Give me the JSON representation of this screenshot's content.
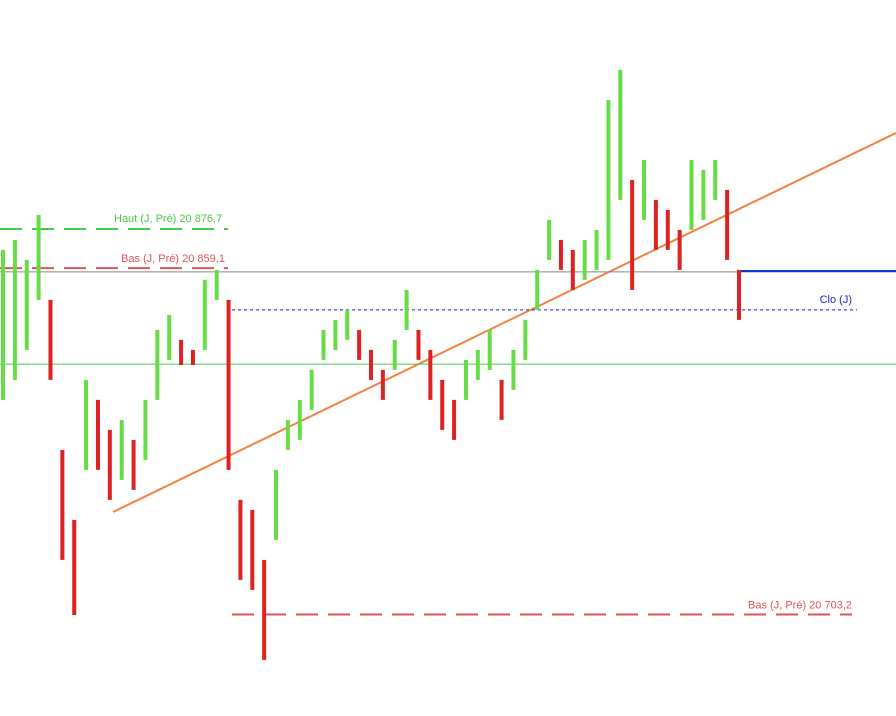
{
  "chart_data": {
    "type": "range",
    "ylim": [
      20657.55,
      20979.75
    ],
    "series": [
      {
        "colors": [
          "#66dd44",
          "#dd2222"
        ],
        "high": [
          20867.3,
          20871.8,
          20862.8,
          20883.0,
          20844.8,
          20777.3,
          20745.8,
          20808.8,
          20799.8,
          20786.3,
          20790.8,
          20781.8,
          20799.8,
          20831.3,
          20838.0,
          20826.8,
          20822.3,
          20853.8,
          20858.3,
          20844.8,
          20754.8,
          20750.3,
          20727.8,
          20768.3,
          20790.8,
          20799.8,
          20813.3,
          20831.3,
          20835.8,
          20840.3,
          20831.3,
          20822.3,
          20813.3,
          20826.8,
          20849.3,
          20831.3,
          20822.3,
          20808.8,
          20799.8,
          20817.8,
          20822.3,
          20831.3,
          20808.8,
          20822.3,
          20835.8,
          20858.3,
          20880.8,
          20871.8,
          20867.3,
          20871.8,
          20876.3,
          20934.8,
          20948.3,
          20898.8,
          20907.8,
          20889.8,
          20885.3,
          20876.3,
          20907.8,
          20903.3,
          20907.8,
          20894.3,
          20858.3
        ],
        "low": [
          20799.8,
          20808.8,
          20822.3,
          20844.8,
          20808.8,
          20727.8,
          20703.0,
          20768.3,
          20768.3,
          20754.8,
          20763.8,
          20759.3,
          20772.8,
          20799.8,
          20817.8,
          20815.5,
          20815.5,
          20822.3,
          20844.8,
          20768.3,
          20718.8,
          20714.3,
          20682.8,
          20736.8,
          20777.3,
          20781.8,
          20795.3,
          20817.8,
          20822.3,
          20826.8,
          20817.8,
          20808.8,
          20799.8,
          20813.3,
          20831.3,
          20817.8,
          20799.8,
          20786.3,
          20781.8,
          20799.8,
          20808.8,
          20813.3,
          20790.8,
          20804.3,
          20817.8,
          20840.3,
          20862.8,
          20858.3,
          20849.3,
          20853.8,
          20858.3,
          20862.8,
          20889.8,
          20849.3,
          20880.8,
          20867.3,
          20867.3,
          20858.3,
          20876.3,
          20880.8,
          20889.8,
          20862.8,
          20835.8
        ]
      }
    ],
    "levels": [
      {
        "label": "Haut (J, Pré) 20 876,7",
        "value": 20876.7,
        "color": "#44cc44",
        "style": "dashed"
      },
      {
        "label": "Bas (J, Pré) 20 859,1",
        "value": 20859.1,
        "color": "#dd5555",
        "style": "dashed"
      },
      {
        "label": "Bas (J, Pré) 20 703,2",
        "value": 20703.2,
        "color": "#dd5555",
        "style": "dashed"
      },
      {
        "label": "Clo (J)",
        "value": 20840.3,
        "color": "#2222cc",
        "style": "dotted"
      },
      {
        "value": 20857.4,
        "color": "#888888",
        "style": "thin"
      },
      {
        "value": 20815.9,
        "color": "#44cc44",
        "style": "thin"
      },
      {
        "value": 20857.8,
        "color": "#1133dd",
        "style": "solid"
      }
    ]
  }
}
